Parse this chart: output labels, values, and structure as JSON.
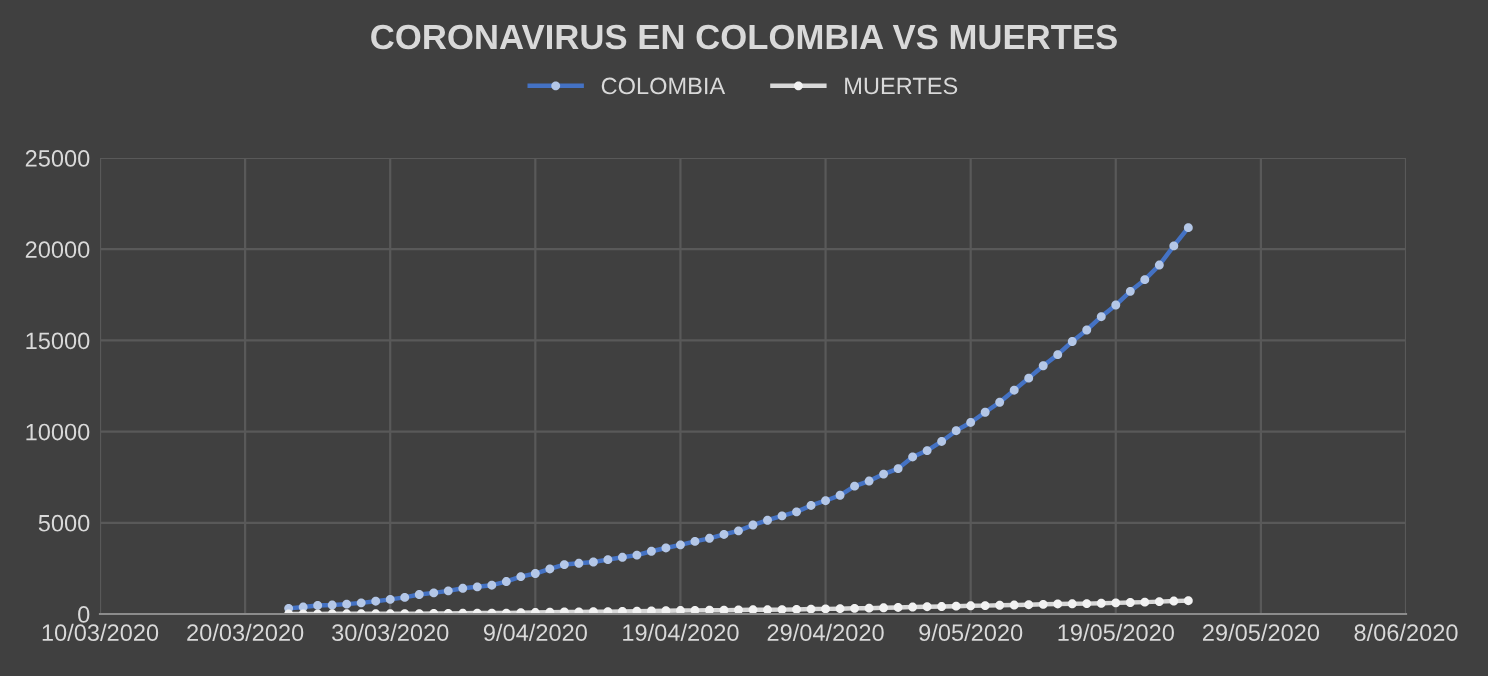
{
  "chart_data": {
    "type": "line",
    "title": "CORONAVIRUS EN COLOMBIA VS MUERTES",
    "x": [
      "2020-03-23",
      "2020-03-24",
      "2020-03-25",
      "2020-03-26",
      "2020-03-27",
      "2020-03-28",
      "2020-03-29",
      "2020-03-30",
      "2020-03-31",
      "2020-04-01",
      "2020-04-02",
      "2020-04-03",
      "2020-04-04",
      "2020-04-05",
      "2020-04-06",
      "2020-04-07",
      "2020-04-08",
      "2020-04-09",
      "2020-04-10",
      "2020-04-11",
      "2020-04-12",
      "2020-04-13",
      "2020-04-14",
      "2020-04-15",
      "2020-04-16",
      "2020-04-17",
      "2020-04-18",
      "2020-04-19",
      "2020-04-20",
      "2020-04-21",
      "2020-04-22",
      "2020-04-23",
      "2020-04-24",
      "2020-04-25",
      "2020-04-26",
      "2020-04-27",
      "2020-04-28",
      "2020-04-29",
      "2020-04-30",
      "2020-05-01",
      "2020-05-02",
      "2020-05-03",
      "2020-05-04",
      "2020-05-05",
      "2020-05-06",
      "2020-05-07",
      "2020-05-08",
      "2020-05-09",
      "2020-05-10",
      "2020-05-11",
      "2020-05-12",
      "2020-05-13",
      "2020-05-14",
      "2020-05-15",
      "2020-05-16",
      "2020-05-17",
      "2020-05-18",
      "2020-05-19",
      "2020-05-20",
      "2020-05-21",
      "2020-05-22",
      "2020-05-23",
      "2020-05-24"
    ],
    "series": [
      {
        "name": "COLOMBIA",
        "color": "#4472c4",
        "values": [
          310,
          380,
          470,
          490,
          540,
          610,
          700,
          800,
          910,
          1070,
          1160,
          1270,
          1410,
          1490,
          1580,
          1780,
          2050,
          2220,
          2470,
          2710,
          2780,
          2850,
          2980,
          3110,
          3230,
          3440,
          3620,
          3790,
          3980,
          4150,
          4360,
          4560,
          4880,
          5140,
          5380,
          5600,
          5950,
          6210,
          6510,
          7010,
          7290,
          7670,
          7970,
          8610,
          8960,
          9460,
          10050,
          10500,
          11060,
          11610,
          12270,
          12930,
          13610,
          14220,
          14940,
          15570,
          16300,
          16940,
          17690,
          18330,
          19130,
          20180,
          21180
        ]
      },
      {
        "name": "MUERTES",
        "color": "#d9d9d9",
        "values": [
          0,
          0,
          0,
          10,
          10,
          10,
          10,
          10,
          20,
          20,
          30,
          30,
          40,
          50,
          50,
          50,
          70,
          80,
          100,
          110,
          110,
          130,
          130,
          140,
          150,
          170,
          180,
          190,
          200,
          210,
          210,
          220,
          230,
          230,
          240,
          250,
          270,
          280,
          290,
          310,
          320,
          340,
          360,
          380,
          400,
          410,
          430,
          450,
          460,
          480,
          490,
          510,
          530,
          550,
          560,
          570,
          590,
          610,
          630,
          650,
          680,
          710,
          730
        ]
      }
    ],
    "xlim": [
      "2020-03-10",
      "2020-06-08"
    ],
    "xticks": [
      {
        "value": "2020-03-10",
        "label": "10/03/2020"
      },
      {
        "value": "2020-03-20",
        "label": "20/03/2020"
      },
      {
        "value": "2020-03-30",
        "label": "30/03/2020"
      },
      {
        "value": "2020-04-09",
        "label": "9/04/2020"
      },
      {
        "value": "2020-04-19",
        "label": "19/04/2020"
      },
      {
        "value": "2020-04-29",
        "label": "29/04/2020"
      },
      {
        "value": "2020-05-09",
        "label": "9/05/2020"
      },
      {
        "value": "2020-05-19",
        "label": "19/05/2020"
      },
      {
        "value": "2020-05-29",
        "label": "29/05/2020"
      },
      {
        "value": "2020-06-08",
        "label": "8/06/2020"
      }
    ],
    "ylim": [
      0,
      25000
    ],
    "yticks": [
      0,
      5000,
      10000,
      15000,
      20000,
      25000
    ],
    "grid": true,
    "legend": "top",
    "marker": "circle",
    "line_style": "solid"
  }
}
